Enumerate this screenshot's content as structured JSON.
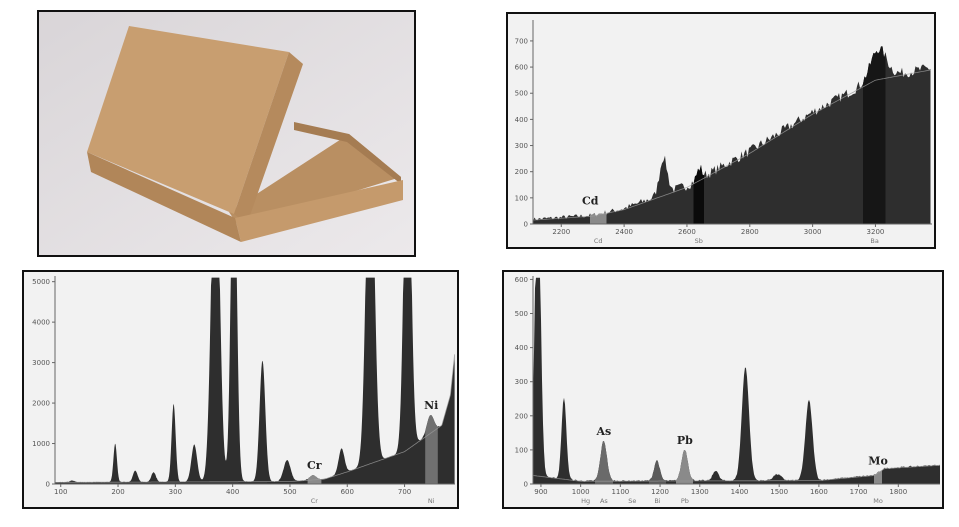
{
  "photo": {
    "subject": "cardboard-box-photo"
  },
  "colors": {
    "fill": "#2e2e2e",
    "background": "#f2f2f2",
    "baseline": "#9a9a9a",
    "highlight_gray": "#8a8a8a",
    "highlight_black": "#0a0a0a"
  },
  "chart_data": [
    {
      "type": "area",
      "xlim": [
        2110,
        3380
      ],
      "ylim": [
        0,
        780
      ],
      "xticks": [
        2200,
        2400,
        2600,
        2800,
        3000,
        3200
      ],
      "yticks": [
        0,
        100,
        200,
        300,
        400,
        500,
        600,
        700
      ],
      "baseline": [
        [
          2110,
          15
        ],
        [
          2300,
          30
        ],
        [
          2400,
          55
        ],
        [
          2600,
          140
        ],
        [
          2800,
          270
        ],
        [
          3000,
          420
        ],
        [
          3200,
          550
        ],
        [
          3380,
          590
        ]
      ],
      "peaks": [
        {
          "x": 2525,
          "height": 140,
          "width": 12
        },
        {
          "x": 2640,
          "height": 40,
          "width": 8
        },
        {
          "x": 3210,
          "height": 110,
          "width": 25
        }
      ],
      "regions": [
        {
          "label": "Cd",
          "from": 2290,
          "to": 2345,
          "color": "#8a8a8a",
          "tag": "Cd",
          "tag_bold": true
        },
        {
          "label": "Sb",
          "from": 2620,
          "to": 2655,
          "color": "#0a0a0a",
          "tag": "Sb",
          "tag_bold": false
        },
        {
          "label": "Ba",
          "from": 3160,
          "to": 3235,
          "color": "#161616",
          "tag": "Ba",
          "tag_bold": false
        }
      ],
      "grid": false
    },
    {
      "type": "area",
      "xlim": [
        90,
        788
      ],
      "ylim": [
        0,
        5140
      ],
      "xticks": [
        100,
        200,
        300,
        400,
        500,
        600,
        700
      ],
      "yticks": [
        0,
        1000,
        2000,
        3000,
        4000,
        5000
      ],
      "baseline": [
        [
          90,
          40
        ],
        [
          500,
          60
        ],
        [
          560,
          120
        ],
        [
          600,
          300
        ],
        [
          650,
          550
        ],
        [
          700,
          800
        ],
        [
          740,
          1200
        ],
        [
          765,
          1450
        ],
        [
          780,
          2200
        ],
        [
          788,
          3300
        ]
      ],
      "peaks": [
        {
          "x": 120,
          "height": 40,
          "width": 4
        },
        {
          "x": 195,
          "height": 950,
          "width": 3
        },
        {
          "x": 230,
          "height": 280,
          "width": 4
        },
        {
          "x": 262,
          "height": 240,
          "width": 4
        },
        {
          "x": 297,
          "height": 1930,
          "width": 3.5
        },
        {
          "x": 333,
          "height": 920,
          "width": 5
        },
        {
          "x": 370,
          "height": 9000,
          "width": 7
        },
        {
          "x": 402,
          "height": 9000,
          "width": 5
        },
        {
          "x": 452,
          "height": 2990,
          "width": 5
        },
        {
          "x": 495,
          "height": 530,
          "width": 6
        },
        {
          "x": 540,
          "height": 110,
          "width": 6
        },
        {
          "x": 590,
          "height": 620,
          "width": 5
        },
        {
          "x": 640,
          "height": 9000,
          "width": 7
        },
        {
          "x": 705,
          "height": 9000,
          "width": 6
        },
        {
          "x": 745,
          "height": 450,
          "width": 6
        }
      ],
      "clip_value": 5100,
      "regions": [
        {
          "label": "Cr",
          "from": 530,
          "to": 555,
          "color": "#8a8a8a",
          "tag": "Cr",
          "tag_bold": true
        },
        {
          "label": "Ni",
          "from": 735,
          "to": 758,
          "color": "#707070",
          "tag": "Ni",
          "tag_bold": true
        }
      ],
      "grid": false
    },
    {
      "type": "area",
      "xlim": [
        880,
        1905
      ],
      "ylim": [
        0,
        610
      ],
      "xticks": [
        900,
        1000,
        1100,
        1200,
        1300,
        1400,
        1500,
        1600,
        1700,
        1800
      ],
      "yticks": [
        0,
        100,
        200,
        300,
        400,
        500,
        600
      ],
      "baseline": [
        [
          880,
          25
        ],
        [
          1000,
          8
        ],
        [
          1600,
          10
        ],
        [
          1740,
          25
        ],
        [
          1765,
          45
        ],
        [
          1905,
          55
        ]
      ],
      "peaks": [
        {
          "x": 892,
          "height": 900,
          "width": 7
        },
        {
          "x": 958,
          "height": 240,
          "width": 6
        },
        {
          "x": 1058,
          "height": 118,
          "width": 8
        },
        {
          "x": 1192,
          "height": 60,
          "width": 7
        },
        {
          "x": 1262,
          "height": 92,
          "width": 8
        },
        {
          "x": 1340,
          "height": 30,
          "width": 7
        },
        {
          "x": 1415,
          "height": 335,
          "width": 9
        },
        {
          "x": 1495,
          "height": 18,
          "width": 10
        },
        {
          "x": 1575,
          "height": 235,
          "width": 9
        }
      ],
      "clip_value": 605,
      "regions": [
        {
          "label": "Hg",
          "from": 1005,
          "to": 1020,
          "color": "#2e2e2e",
          "tag": "Hg",
          "tag_bold": false
        },
        {
          "label": "As",
          "from": 1035,
          "to": 1082,
          "color": "#6a6a6a",
          "tag": "As",
          "tag_bold": true
        },
        {
          "label": "Se",
          "from": 1120,
          "to": 1140,
          "color": "#2e2e2e",
          "tag": "Se",
          "tag_bold": false
        },
        {
          "label": "Bi",
          "from": 1172,
          "to": 1215,
          "color": "#5a5a5a",
          "tag": "Bi",
          "tag_bold": false
        },
        {
          "label": "Pb",
          "from": 1240,
          "to": 1285,
          "color": "#8a8a8a",
          "tag": "Pb",
          "tag_bold": true
        },
        {
          "label": "Mo",
          "from": 1738,
          "to": 1760,
          "color": "#8a8a8a",
          "tag": "Mo",
          "tag_bold": true
        }
      ],
      "grid": false
    }
  ]
}
